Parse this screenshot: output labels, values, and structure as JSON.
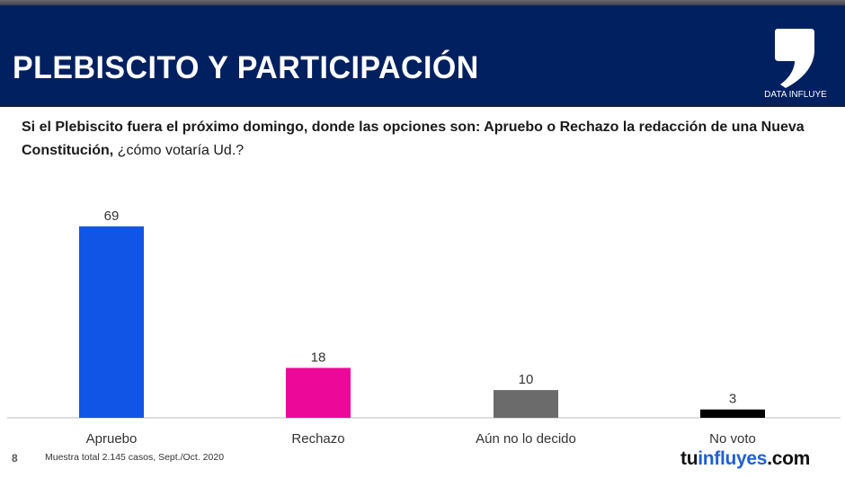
{
  "header": {
    "title": "PLEBISCITO Y PARTICIPACIÓN",
    "logo_label": "DATA INFLUYE",
    "background_color": "#002060"
  },
  "question": {
    "bold_part": "Si el Plebiscito fuera el próximo domingo, donde las opciones son: Apruebo o Rechazo la redacción de una Nueva Constitución,",
    "normal_part": " ¿cómo votaría Ud.?"
  },
  "chart_data": {
    "type": "bar",
    "title": "Si el Plebiscito fuera el próximo domingo, donde las opciones son: Apruebo o Rechazo la redacción de una Nueva Constitución, ¿cómo votaría Ud.?",
    "categories": [
      "Apruebo",
      "Rechazo",
      "Aún no lo decido",
      "No voto"
    ],
    "values": [
      69,
      18,
      10,
      3
    ],
    "colors": [
      "#1155e6",
      "#ec0898",
      "#6b6b6b",
      "#000000"
    ],
    "xlabel": "",
    "ylabel": "",
    "ylim": [
      0,
      69
    ],
    "grid": false,
    "legend": "none",
    "data_labels": [
      "69",
      "18",
      "10",
      "3"
    ]
  },
  "footer": {
    "page_number": "8",
    "note": "Muestra total 2.145 casos,  Sept./Oct. 2020",
    "brand_part1": "tu",
    "brand_part2": "influyes",
    "brand_part3": ".com"
  }
}
